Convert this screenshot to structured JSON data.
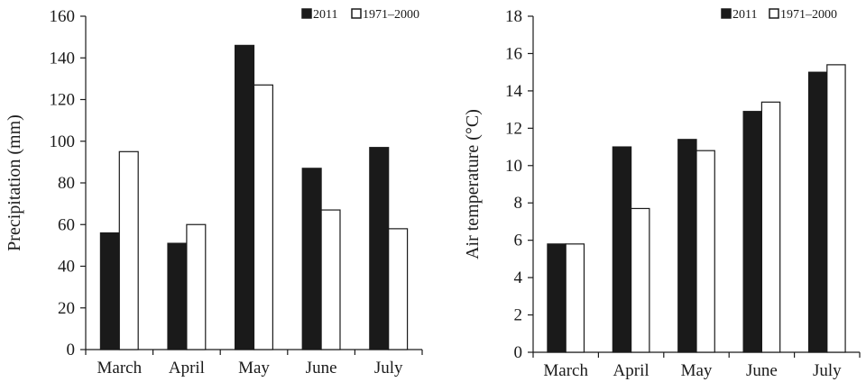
{
  "colors": {
    "series_2011": "#1a1a1a",
    "series_normal": "#ffffff",
    "stroke": "#1a1a1a"
  },
  "chart_data": [
    {
      "type": "bar",
      "categories": [
        "March",
        "April",
        "May",
        "June",
        "July"
      ],
      "series": [
        {
          "name": "2011",
          "values": [
            56,
            51,
            146,
            87,
            97
          ]
        },
        {
          "name": "1971–2000",
          "values": [
            95,
            60,
            127,
            67,
            58
          ]
        }
      ],
      "title": "",
      "xlabel": "",
      "ylabel": "Precipitation (mm)",
      "ylim": [
        0,
        160
      ],
      "yticks": [
        0,
        20,
        40,
        60,
        80,
        100,
        120,
        140,
        160
      ],
      "grid": false,
      "legend": "top-right"
    },
    {
      "type": "bar",
      "categories": [
        "March",
        "April",
        "May",
        "June",
        "July"
      ],
      "series": [
        {
          "name": "2011",
          "values": [
            5.8,
            11.0,
            11.4,
            12.9,
            15.0
          ]
        },
        {
          "name": "1971–2000",
          "values": [
            5.8,
            7.7,
            10.8,
            13.4,
            15.4
          ]
        }
      ],
      "title": "",
      "xlabel": "",
      "ylabel": "Air temperature (°C)",
      "ylim": [
        0,
        18
      ],
      "yticks": [
        0,
        2,
        4,
        6,
        8,
        10,
        12,
        14,
        16,
        18
      ],
      "grid": false,
      "legend": "top-right"
    }
  ]
}
